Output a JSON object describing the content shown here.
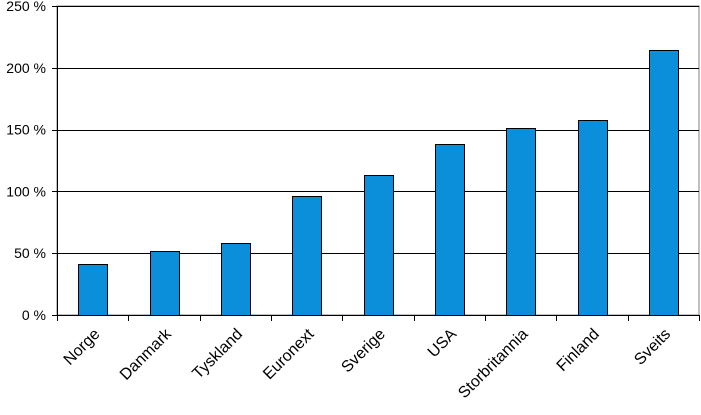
{
  "chart_data": {
    "type": "bar",
    "categories": [
      "Norge",
      "Danmark",
      "Tyskland",
      "Euronext",
      "Sverige",
      "USA",
      "Storbritannia",
      "Finland",
      "Sveits"
    ],
    "values": [
      41,
      52,
      58,
      96,
      113,
      138,
      151,
      158,
      214
    ],
    "ylim": [
      0,
      250
    ],
    "yticks": [
      0,
      50,
      100,
      150,
      200,
      250
    ],
    "ytick_labels": [
      "0 %",
      "50 %",
      "100 %",
      "150 %",
      "200 %",
      "250 %"
    ],
    "grid": true,
    "bar_color": "#0b8fdb",
    "title": "",
    "xlabel": "",
    "ylabel": ""
  }
}
